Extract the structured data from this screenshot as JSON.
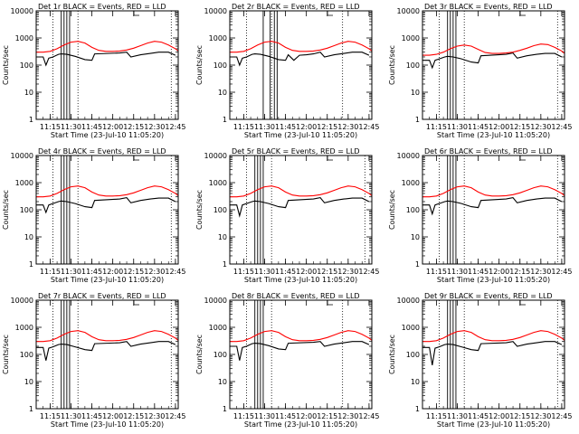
{
  "figure": {
    "start_time_label": "Start Time (23-Jul-10 11:05:20)",
    "x_ticks": [
      "11:15",
      "11:30",
      "11:45",
      "12:00",
      "12:15",
      "12:30",
      "12:45"
    ],
    "y_ticks": [
      "1",
      "10",
      "100",
      "1000",
      "10000"
    ],
    "colors": {
      "events": "#000000",
      "lld": "#ff0000"
    }
  },
  "chart_data": [
    {
      "type": "line",
      "title": "Det 1r BLACK = Events, RED = LLD",
      "xlabel": "Start Time (23-Jul-10 11:05:20)",
      "ylabel": "Counts/sec",
      "ylim": [
        1,
        10000
      ],
      "yscale": "log",
      "xlim_minutes_after_11_05_20": [
        0,
        102
      ],
      "vlines_dotted": [
        12,
        30,
        97
      ],
      "vlines_solid": [
        18,
        20,
        22,
        24
      ],
      "series": [
        {
          "name": "Events",
          "color": "#000000",
          "x": [
            0,
            5,
            7,
            9,
            12,
            16,
            18,
            22,
            28,
            35,
            40,
            42,
            60,
            65,
            68,
            75,
            82,
            88,
            95,
            100
          ],
          "values": [
            200,
            200,
            100,
            180,
            200,
            250,
            260,
            250,
            210,
            160,
            150,
            260,
            280,
            300,
            200,
            240,
            270,
            300,
            300,
            230
          ]
        },
        {
          "name": "LLD",
          "color": "#ff0000",
          "x": [
            0,
            5,
            10,
            15,
            20,
            25,
            30,
            35,
            40,
            45,
            50,
            55,
            60,
            65,
            70,
            75,
            80,
            85,
            90,
            95,
            100,
            102
          ],
          "values": [
            300,
            300,
            320,
            400,
            550,
            700,
            750,
            650,
            450,
            350,
            320,
            320,
            330,
            360,
            420,
            520,
            650,
            750,
            700,
            550,
            400,
            330
          ]
        }
      ]
    },
    {
      "type": "line",
      "title": "Det 2r BLACK = Events, RED = LLD",
      "xlabel": "Start Time (23-Jul-10 11:05:20)",
      "ylabel": "Counts/sec",
      "ylim": [
        1,
        10000
      ],
      "yscale": "log",
      "xlim_minutes_after_11_05_20": [
        0,
        102
      ],
      "vlines_dotted": [
        12,
        30,
        81
      ],
      "vlines_solid": [
        24,
        29,
        32,
        34
      ],
      "series": [
        {
          "name": "Events",
          "color": "#000000",
          "x": [
            0,
            5,
            7,
            9,
            12,
            16,
            18,
            22,
            28,
            35,
            40,
            42,
            46,
            50,
            55,
            60,
            65,
            68,
            75,
            82,
            88,
            95,
            100
          ],
          "values": [
            200,
            200,
            100,
            180,
            200,
            250,
            260,
            250,
            210,
            160,
            150,
            240,
            150,
            230,
            240,
            260,
            300,
            200,
            240,
            270,
            300,
            300,
            230
          ]
        },
        {
          "name": "LLD",
          "color": "#ff0000",
          "x": [
            0,
            5,
            10,
            15,
            20,
            25,
            30,
            35,
            40,
            45,
            50,
            55,
            60,
            65,
            70,
            75,
            80,
            85,
            90,
            95,
            100,
            102
          ],
          "values": [
            300,
            300,
            320,
            400,
            550,
            700,
            750,
            650,
            450,
            350,
            320,
            320,
            330,
            360,
            420,
            520,
            650,
            750,
            700,
            550,
            400,
            330
          ]
        }
      ]
    },
    {
      "type": "line",
      "title": "Det 3r BLACK = Events, RED = LLD",
      "xlabel": "Start Time (23-Jul-10 11:05:20)",
      "ylabel": "Counts/sec",
      "ylim": [
        1,
        10000
      ],
      "yscale": "log",
      "xlim_minutes_after_11_05_20": [
        0,
        102
      ],
      "vlines_dotted": [
        12,
        30,
        97
      ],
      "vlines_solid": [
        18,
        20,
        22,
        24
      ],
      "series": [
        {
          "name": "Events",
          "color": "#000000",
          "x": [
            0,
            5,
            7,
            9,
            12,
            16,
            18,
            22,
            28,
            35,
            40,
            42,
            60,
            65,
            68,
            75,
            82,
            88,
            95,
            100
          ],
          "values": [
            150,
            150,
            80,
            150,
            170,
            200,
            210,
            200,
            170,
            130,
            120,
            220,
            250,
            280,
            180,
            220,
            250,
            270,
            270,
            200
          ]
        },
        {
          "name": "LLD",
          "color": "#ff0000",
          "x": [
            0,
            5,
            10,
            15,
            20,
            25,
            30,
            35,
            40,
            45,
            50,
            55,
            60,
            65,
            70,
            75,
            80,
            85,
            90,
            95,
            100,
            102
          ],
          "values": [
            230,
            230,
            250,
            300,
            400,
            500,
            550,
            500,
            380,
            290,
            270,
            270,
            280,
            300,
            350,
            420,
            520,
            600,
            570,
            450,
            330,
            270
          ]
        }
      ]
    },
    {
      "type": "line",
      "title": "Det 4r BLACK = Events, RED = LLD",
      "xlabel": "Start Time (23-Jul-10 11:05:20)",
      "ylabel": "Counts/sec",
      "ylim": [
        1,
        10000
      ],
      "yscale": "log",
      "xlim_minutes_after_11_05_20": [
        0,
        102
      ],
      "vlines_dotted": [
        12,
        30,
        97
      ],
      "vlines_solid": [
        18,
        20,
        22,
        24
      ],
      "series": [
        {
          "name": "Events",
          "color": "#000000",
          "x": [
            0,
            5,
            7,
            9,
            12,
            16,
            18,
            22,
            28,
            35,
            40,
            42,
            60,
            65,
            68,
            75,
            82,
            88,
            95,
            100
          ],
          "values": [
            150,
            150,
            80,
            150,
            170,
            200,
            210,
            200,
            170,
            130,
            120,
            220,
            250,
            280,
            180,
            220,
            250,
            270,
            270,
            200
          ]
        },
        {
          "name": "LLD",
          "color": "#ff0000",
          "x": [
            0,
            5,
            10,
            15,
            20,
            25,
            30,
            35,
            40,
            45,
            50,
            55,
            60,
            65,
            70,
            75,
            80,
            85,
            90,
            95,
            100,
            102
          ],
          "values": [
            300,
            300,
            320,
            400,
            550,
            700,
            750,
            650,
            450,
            350,
            320,
            320,
            330,
            360,
            420,
            520,
            650,
            750,
            700,
            550,
            400,
            330
          ]
        }
      ]
    },
    {
      "type": "line",
      "title": "Det 5r BLACK = Events, RED = LLD",
      "xlabel": "Start Time (23-Jul-10 11:05:20)",
      "ylabel": "Counts/sec",
      "ylim": [
        1,
        10000
      ],
      "yscale": "log",
      "xlim_minutes_after_11_05_20": [
        0,
        102
      ],
      "vlines_dotted": [
        12,
        30,
        97
      ],
      "vlines_solid": [
        18,
        20,
        22,
        24
      ],
      "series": [
        {
          "name": "Events",
          "color": "#000000",
          "x": [
            0,
            5,
            7,
            9,
            12,
            16,
            18,
            22,
            28,
            35,
            40,
            42,
            60,
            65,
            68,
            75,
            82,
            88,
            95,
            100
          ],
          "values": [
            150,
            150,
            60,
            150,
            170,
            200,
            210,
            200,
            170,
            130,
            120,
            220,
            250,
            280,
            180,
            220,
            250,
            270,
            270,
            200
          ]
        },
        {
          "name": "LLD",
          "color": "#ff0000",
          "x": [
            0,
            5,
            10,
            15,
            20,
            25,
            30,
            35,
            40,
            45,
            50,
            55,
            60,
            65,
            70,
            75,
            80,
            85,
            90,
            95,
            100,
            102
          ],
          "values": [
            300,
            300,
            320,
            400,
            550,
            700,
            750,
            650,
            450,
            350,
            320,
            320,
            330,
            360,
            420,
            520,
            650,
            750,
            700,
            550,
            400,
            330
          ]
        }
      ]
    },
    {
      "type": "line",
      "title": "Det 6r BLACK = Events, RED = LLD",
      "xlabel": "Start Time (23-Jul-10 11:05:20)",
      "ylabel": "Counts/sec",
      "ylim": [
        1,
        10000
      ],
      "yscale": "log",
      "xlim_minutes_after_11_05_20": [
        0,
        102
      ],
      "vlines_dotted": [
        12,
        30,
        97
      ],
      "vlines_solid": [
        18,
        20,
        22,
        24
      ],
      "series": [
        {
          "name": "Events",
          "color": "#000000",
          "x": [
            0,
            5,
            7,
            9,
            12,
            16,
            18,
            22,
            28,
            35,
            40,
            42,
            60,
            65,
            68,
            75,
            82,
            88,
            95,
            100
          ],
          "values": [
            150,
            150,
            70,
            150,
            170,
            200,
            210,
            200,
            170,
            130,
            120,
            220,
            250,
            280,
            180,
            220,
            250,
            270,
            270,
            200
          ]
        },
        {
          "name": "LLD",
          "color": "#ff0000",
          "x": [
            0,
            5,
            10,
            15,
            20,
            25,
            30,
            35,
            40,
            45,
            50,
            55,
            60,
            65,
            70,
            75,
            80,
            85,
            90,
            95,
            100,
            102
          ],
          "values": [
            300,
            300,
            320,
            400,
            550,
            700,
            750,
            650,
            450,
            350,
            320,
            320,
            330,
            360,
            420,
            520,
            650,
            750,
            700,
            550,
            400,
            330
          ]
        }
      ]
    },
    {
      "type": "line",
      "title": "Det 7r BLACK = Events, RED = LLD",
      "xlabel": "Start Time (23-Jul-10 11:05:20)",
      "ylabel": "Counts/sec",
      "ylim": [
        1,
        10000
      ],
      "yscale": "log",
      "xlim_minutes_after_11_05_20": [
        0,
        102
      ],
      "vlines_dotted": [
        12,
        30,
        97
      ],
      "vlines_solid": [
        18,
        20,
        22,
        24
      ],
      "series": [
        {
          "name": "Events",
          "color": "#000000",
          "x": [
            0,
            5,
            7,
            9,
            12,
            16,
            18,
            22,
            28,
            35,
            40,
            42,
            60,
            65,
            68,
            75,
            82,
            88,
            95,
            100
          ],
          "values": [
            180,
            180,
            60,
            170,
            190,
            230,
            240,
            230,
            190,
            150,
            140,
            250,
            270,
            300,
            200,
            240,
            270,
            300,
            300,
            230
          ]
        },
        {
          "name": "LLD",
          "color": "#ff0000",
          "x": [
            0,
            5,
            10,
            15,
            20,
            25,
            30,
            35,
            40,
            45,
            50,
            55,
            60,
            65,
            70,
            75,
            80,
            85,
            90,
            95,
            100,
            102
          ],
          "values": [
            300,
            300,
            320,
            400,
            550,
            700,
            750,
            650,
            450,
            350,
            320,
            320,
            330,
            360,
            420,
            520,
            650,
            750,
            700,
            550,
            400,
            330
          ]
        }
      ]
    },
    {
      "type": "line",
      "title": "Det 8r BLACK = Events, RED = LLD",
      "xlabel": "Start Time (23-Jul-10 11:05:20)",
      "ylabel": "Counts/sec",
      "ylim": [
        1,
        10000
      ],
      "yscale": "log",
      "xlim_minutes_after_11_05_20": [
        0,
        102
      ],
      "vlines_dotted": [
        12,
        30,
        81
      ],
      "vlines_solid": [
        18,
        20,
        22,
        24
      ],
      "series": [
        {
          "name": "Events",
          "color": "#000000",
          "x": [
            0,
            5,
            7,
            9,
            12,
            16,
            18,
            22,
            28,
            35,
            40,
            42,
            60,
            65,
            68,
            75,
            82,
            88,
            95,
            100
          ],
          "values": [
            200,
            200,
            60,
            180,
            200,
            250,
            260,
            250,
            210,
            160,
            150,
            260,
            280,
            300,
            200,
            240,
            270,
            300,
            300,
            230
          ]
        },
        {
          "name": "LLD",
          "color": "#ff0000",
          "x": [
            0,
            5,
            10,
            15,
            20,
            25,
            30,
            35,
            40,
            45,
            50,
            55,
            60,
            65,
            70,
            75,
            80,
            85,
            90,
            95,
            100,
            102
          ],
          "values": [
            300,
            300,
            320,
            400,
            550,
            700,
            750,
            650,
            450,
            350,
            320,
            320,
            330,
            360,
            420,
            520,
            650,
            750,
            700,
            550,
            400,
            330
          ]
        }
      ]
    },
    {
      "type": "line",
      "title": "Det 9r BLACK = Events, RED = LLD",
      "xlabel": "Start Time (23-Jul-10 11:05:20)",
      "ylabel": "Counts/sec",
      "ylim": [
        1,
        10000
      ],
      "yscale": "log",
      "xlim_minutes_after_11_05_20": [
        0,
        102
      ],
      "vlines_dotted": [
        12,
        30,
        97
      ],
      "vlines_solid": [
        18,
        20,
        22,
        24
      ],
      "series": [
        {
          "name": "Events",
          "color": "#000000",
          "x": [
            0,
            5,
            7,
            9,
            12,
            16,
            18,
            22,
            28,
            35,
            40,
            42,
            60,
            65,
            68,
            75,
            82,
            88,
            95,
            100
          ],
          "values": [
            180,
            180,
            40,
            170,
            190,
            230,
            240,
            230,
            190,
            150,
            140,
            250,
            270,
            300,
            200,
            240,
            270,
            300,
            300,
            230
          ]
        },
        {
          "name": "LLD",
          "color": "#ff0000",
          "x": [
            0,
            5,
            10,
            15,
            20,
            25,
            30,
            35,
            40,
            45,
            50,
            55,
            60,
            65,
            70,
            75,
            80,
            85,
            90,
            95,
            100,
            102
          ],
          "values": [
            300,
            300,
            320,
            400,
            550,
            700,
            750,
            650,
            450,
            350,
            320,
            320,
            330,
            360,
            420,
            520,
            650,
            750,
            700,
            550,
            400,
            330
          ]
        }
      ]
    }
  ]
}
